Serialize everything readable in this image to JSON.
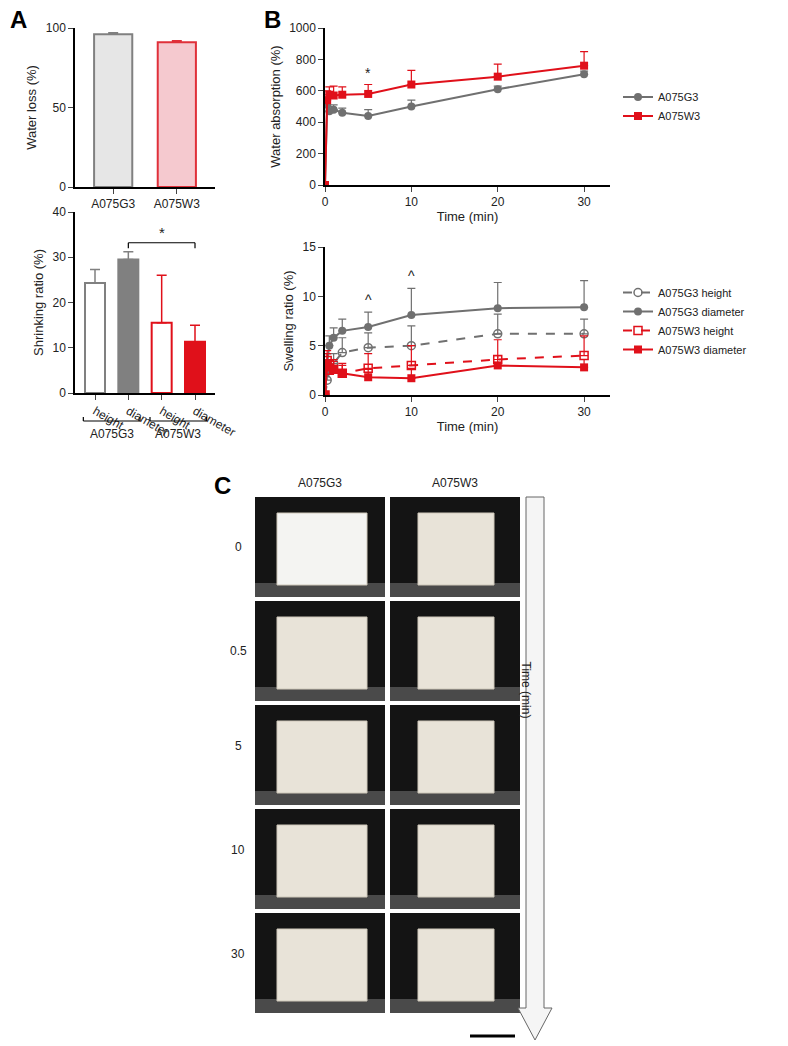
{
  "chart_data": [
    {
      "type": "bar",
      "panel": "A",
      "y_label": "Water loss (%)",
      "categories": [
        "A075G3",
        "A075W3"
      ],
      "values": [
        96,
        91
      ],
      "errors": [
        1,
        1
      ],
      "colors": [
        "#e6e6e6",
        "#f5c9cf"
      ],
      "ylim": [
        0,
        100
      ],
      "yticks": [
        0,
        50,
        100
      ]
    },
    {
      "type": "bar",
      "panel": "A",
      "y_label": "Shrinking ratio (%)",
      "categories": [
        "height",
        "diameter",
        "height",
        "diameter"
      ],
      "values": [
        24.3,
        29.5,
        15.5,
        11.3
      ],
      "errors": [
        3,
        1.7,
        10.5,
        3.7
      ],
      "colors": [
        "#ffffff",
        "#808080",
        "#ffffff",
        "#e0101a"
      ],
      "groups": [
        {
          "label": "A075G3",
          "from": 0,
          "to": 1
        },
        {
          "label": "A075W3",
          "from": 2,
          "to": 3
        }
      ],
      "significance": [
        {
          "from": 1,
          "to": 3,
          "text": "*"
        }
      ],
      "ylim": [
        0,
        40
      ],
      "yticks": [
        0,
        10,
        20,
        30,
        40
      ]
    },
    {
      "type": "line",
      "panel": "B",
      "y_label": "Water absorption (%)",
      "x_label": "Time (min)",
      "x": [
        0,
        0.25,
        0.5,
        1,
        2,
        5,
        10,
        20,
        30
      ],
      "series": [
        {
          "name": "A075G3",
          "color": "#707070",
          "marker": "circle",
          "line_style": "solid",
          "values": [
            0,
            510,
            470,
            480,
            460,
            440,
            500,
            610,
            705
          ],
          "errors": [
            0,
            40,
            30,
            30,
            30,
            40,
            40,
            20,
            20
          ]
        },
        {
          "name": "A075W3",
          "color": "#e0101a",
          "marker": "square",
          "line_style": "solid",
          "values": [
            0,
            540,
            575,
            570,
            575,
            580,
            640,
            690,
            760
          ],
          "errors": [
            0,
            60,
            50,
            60,
            50,
            60,
            90,
            80,
            90
          ]
        }
      ],
      "annotations": [
        {
          "x": 5,
          "series": "A075W3",
          "text": "*"
        }
      ],
      "legend": "right",
      "xlim": [
        0,
        33
      ],
      "xticks": [
        0,
        10,
        20,
        30
      ],
      "ylim": [
        0,
        1000
      ],
      "yticks": [
        0,
        200,
        400,
        600,
        800,
        1000
      ]
    },
    {
      "type": "line",
      "panel": "B",
      "y_label": "Swelling ratio (%)",
      "x_label": "Time (min)",
      "x": [
        0,
        0.25,
        0.5,
        1,
        2,
        5,
        10,
        20,
        30
      ],
      "series": [
        {
          "name": "A075G3 height",
          "color": "#707070",
          "marker": "circle-open",
          "line_style": "dash",
          "values": [
            0,
            1.5,
            2.5,
            3.2,
            4.3,
            4.8,
            5.0,
            6.2,
            6.2
          ],
          "errors": [
            0,
            1,
            1,
            1,
            1.5,
            1.5,
            2,
            2,
            1.5
          ]
        },
        {
          "name": "A075G3 diameter",
          "color": "#707070",
          "marker": "circle",
          "line_style": "solid",
          "values": [
            0,
            3.2,
            5.0,
            5.8,
            6.5,
            6.9,
            8.1,
            8.8,
            8.9
          ],
          "errors": [
            0,
            1,
            1,
            1,
            1.2,
            1.5,
            2.7,
            2.6,
            2.7
          ]
        },
        {
          "name": "A075W3 height",
          "color": "#e0101a",
          "marker": "square-open",
          "line_style": "dash",
          "values": [
            0,
            3.5,
            2.5,
            2.6,
            2.2,
            2.7,
            3.0,
            3.6,
            4.0
          ],
          "errors": [
            0,
            1,
            1,
            1,
            1,
            1.5,
            2,
            2,
            2
          ]
        },
        {
          "name": "A075W3 diameter",
          "color": "#e0101a",
          "marker": "square",
          "line_style": "solid",
          "values": [
            0,
            3.2,
            2.8,
            2.6,
            2.2,
            1.8,
            1.7,
            3.0,
            2.8
          ],
          "errors": [
            0,
            1,
            0.8,
            0.8,
            0.8,
            0.8,
            1,
            1,
            0.8
          ]
        }
      ],
      "annotations": [
        {
          "x": 5,
          "series": "A075G3 diameter",
          "text": "^"
        },
        {
          "x": 10,
          "series": "A075G3 diameter",
          "text": "^"
        }
      ],
      "legend": "right",
      "xlim": [
        0,
        33
      ],
      "xticks": [
        0,
        10,
        20,
        30
      ],
      "ylim": [
        0,
        15
      ],
      "yticks": [
        0,
        5,
        10,
        15
      ]
    }
  ],
  "panel_c": {
    "letter": "C",
    "columns": [
      "A075G3",
      "A075W3"
    ],
    "times": [
      0,
      0.5,
      5,
      10,
      30
    ],
    "axis_label": "Time (min)"
  }
}
